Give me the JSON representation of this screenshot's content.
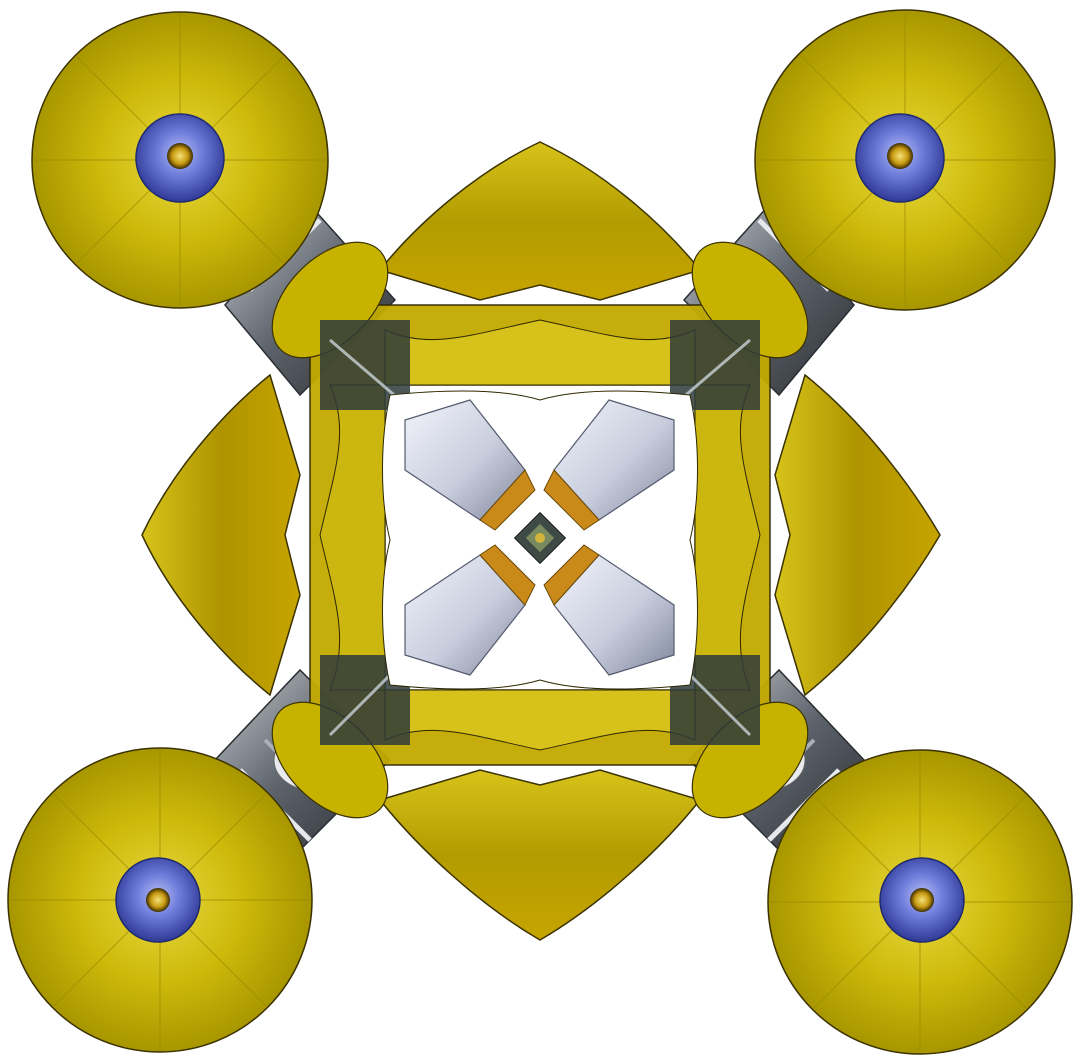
{
  "image": {
    "subject": "kaleidoscope-flower-composition",
    "symmetry": "four-fold",
    "background": "#ffffff",
    "palette": {
      "petal_yellow": "#c9b400",
      "petal_yellow_light": "#e6d83a",
      "petal_yellow_dark": "#8c7c00",
      "gold_shadow": "#a68a00",
      "blue_center": "#4f5fc9",
      "blue_center_light": "#9aa6ee",
      "stamen_gold": "#d9b020",
      "tube_white": "#d8dbe6",
      "tube_shadow": "#8e93a6",
      "stem_dark": "#3b3f44",
      "stem_grey": "#9aa0a8",
      "band_orange": "#c98a1a"
    }
  }
}
